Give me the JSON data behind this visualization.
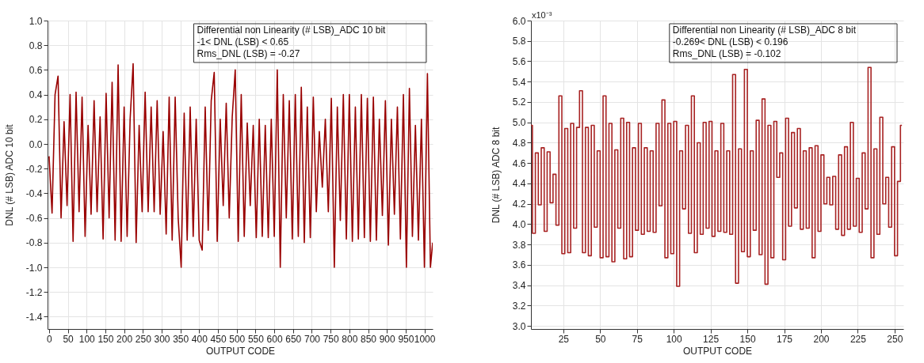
{
  "chart_data": [
    {
      "type": "line",
      "xlabel": "OUTPUT CODE",
      "ylabel": "DNL (# LSB) ADC 10 bit",
      "color": "#990000",
      "grid": true,
      "annotations": [
        "Differential non Linearity (# LSB)_ADC 10 bit",
        "-1< DNL (LSB) < 0.65",
        "Rms_DNL (LSB) = -0.27"
      ],
      "xlim": [
        -4,
        1022
      ],
      "xticks": [
        0,
        50,
        100,
        150,
        200,
        250,
        300,
        350,
        400,
        450,
        500,
        550,
        600,
        650,
        700,
        750,
        800,
        850,
        900,
        950,
        1000
      ],
      "ylim": [
        -1.5,
        1.0
      ],
      "yticks": [
        -1.4,
        -1.2,
        {
          "value": -1,
          "label": "-1.0"
        },
        -0.8,
        -0.6,
        -0.4,
        -0.2,
        {
          "value": 0,
          "label": "0.0"
        },
        0.2,
        0.4,
        0.6,
        0.8,
        {
          "value": 1,
          "label": "1.0"
        }
      ],
      "x": [
        0,
        8,
        16,
        24,
        32,
        40,
        48,
        56,
        64,
        72,
        80,
        88,
        96,
        104,
        112,
        120,
        128,
        136,
        144,
        152,
        160,
        168,
        176,
        184,
        192,
        200,
        208,
        216,
        224,
        232,
        240,
        248,
        256,
        264,
        272,
        280,
        288,
        296,
        304,
        312,
        320,
        328,
        336,
        344,
        352,
        360,
        368,
        376,
        384,
        392,
        400,
        408,
        416,
        424,
        432,
        440,
        448,
        456,
        464,
        472,
        480,
        488,
        496,
        504,
        512,
        520,
        528,
        536,
        544,
        552,
        560,
        568,
        576,
        584,
        592,
        600,
        608,
        616,
        624,
        632,
        640,
        648,
        656,
        664,
        672,
        680,
        688,
        696,
        704,
        712,
        720,
        728,
        736,
        744,
        752,
        760,
        768,
        776,
        784,
        792,
        800,
        808,
        816,
        824,
        832,
        840,
        848,
        856,
        864,
        872,
        880,
        888,
        896,
        904,
        912,
        920,
        928,
        936,
        944,
        952,
        960,
        968,
        976,
        984,
        992,
        1000,
        1008,
        1016,
        1022
      ],
      "values": [
        -0.1,
        -0.56,
        0.4,
        0.55,
        -0.6,
        0.18,
        -0.5,
        0.4,
        -0.79,
        0.42,
        -0.55,
        0.38,
        -0.75,
        0.15,
        -0.57,
        0.35,
        -0.55,
        0.22,
        -0.77,
        0.41,
        -0.6,
        0.5,
        -0.78,
        0.64,
        -0.79,
        0.3,
        -0.75,
        0.2,
        0.65,
        -0.8,
        0.15,
        -0.55,
        0.42,
        -0.55,
        0.3,
        -0.55,
        0.35,
        -0.57,
        0.1,
        -0.73,
        0.38,
        -0.78,
        0.38,
        -0.6,
        -1.0,
        0.25,
        -0.78,
        0.3,
        -0.75,
        0.2,
        -0.78,
        -0.86,
        0.3,
        -0.7,
        0.35,
        0.58,
        -0.79,
        0.2,
        -0.5,
        0.33,
        -0.6,
        0.22,
        0.6,
        -0.79,
        0.4,
        -0.75,
        0.17,
        -0.5,
        0.15,
        -0.76,
        0.2,
        -0.75,
        0.15,
        -0.76,
        0.2,
        -0.75,
        0.6,
        -1.0,
        0.4,
        -0.6,
        0.35,
        -0.77,
        0.4,
        -0.75,
        0.46,
        -0.8,
        0.3,
        -0.76,
        0.38,
        -0.55,
        0.1,
        -0.35,
        0.2,
        -0.55,
        0.37,
        -1.0,
        0.3,
        -0.62,
        0.4,
        -0.77,
        0.4,
        -0.79,
        0.3,
        -0.77,
        0.4,
        -0.76,
        0.37,
        -0.79,
        0.38,
        -0.78,
        0.2,
        -0.58,
        0.35,
        -0.82,
        0.2,
        -0.57,
        0.3,
        -0.77,
        0.4,
        -1.0,
        0.45,
        -0.75,
        0.15,
        -0.78,
        0.2,
        -1.0,
        0.57,
        -1.0,
        -0.8
      ]
    },
    {
      "type": "step",
      "xlabel": "OUTPUT CODE",
      "ylabel": "DNL (# LSB)  ADC 8 bit",
      "color": "#a82323",
      "grid": true,
      "annotations": [
        "Differential non Linearity (# LSB)_ADC 8 bit",
        "-0.269< DNL (LSB) < 0.196",
        "Rms_DNL (LSB) = -0.102",
        "x10⁻³"
      ],
      "xlim": [
        3,
        256
      ],
      "xticks": [
        25,
        50,
        75,
        100,
        125,
        150,
        175,
        200,
        225,
        250
      ],
      "ylim": [
        2.97,
        6.0
      ],
      "yticks": [
        {
          "value": 3,
          "label": "3.0"
        },
        3.2,
        3.4,
        3.6,
        3.8,
        {
          "value": 4,
          "label": "4.0"
        },
        4.2,
        4.4,
        4.6,
        4.8,
        {
          "value": 5,
          "label": "5.0"
        },
        5.2,
        5.4,
        5.6,
        5.8,
        {
          "value": 6,
          "label": "6.0"
        }
      ],
      "x": [
        3,
        5,
        7,
        9,
        11,
        13,
        15,
        17,
        19,
        21,
        23,
        25,
        27,
        29,
        31,
        33,
        35,
        37,
        39,
        41,
        43,
        45,
        47,
        49,
        51,
        53,
        55,
        57,
        59,
        61,
        63,
        65,
        67,
        69,
        71,
        73,
        75,
        77,
        79,
        81,
        83,
        85,
        87,
        89,
        91,
        93,
        95,
        97,
        99,
        101,
        103,
        105,
        107,
        109,
        111,
        113,
        115,
        117,
        119,
        121,
        123,
        125,
        127,
        129,
        131,
        133,
        135,
        137,
        139,
        141,
        143,
        145,
        147,
        149,
        151,
        153,
        155,
        157,
        159,
        161,
        163,
        165,
        167,
        169,
        171,
        173,
        175,
        177,
        179,
        181,
        183,
        185,
        187,
        189,
        191,
        193,
        195,
        197,
        199,
        201,
        203,
        205,
        207,
        209,
        211,
        213,
        215,
        217,
        219,
        221,
        223,
        225,
        227,
        229,
        231,
        233,
        235,
        237,
        239,
        241,
        243,
        245,
        247,
        249,
        251,
        253,
        255
      ],
      "values": [
        4.97,
        3.91,
        4.7,
        4.19,
        4.75,
        3.93,
        4.71,
        4.21,
        4.49,
        3.99,
        5.26,
        3.71,
        4.94,
        3.72,
        4.99,
        3.96,
        4.95,
        5.31,
        3.72,
        4.95,
        3.69,
        4.97,
        3.97,
        4.72,
        3.67,
        5.26,
        3.68,
        4.99,
        3.63,
        4.73,
        3.96,
        5.04,
        3.66,
        5.0,
        3.68,
        4.75,
        3.94,
        4.99,
        3.9,
        4.75,
        3.93,
        4.72,
        3.92,
        4.99,
        4.18,
        5.22,
        3.67,
        4.99,
        3.71,
        5.01,
        3.39,
        4.72,
        4.15,
        4.97,
        3.91,
        5.26,
        3.72,
        4.8,
        3.9,
        5.0,
        3.96,
        5.01,
        3.88,
        4.72,
        3.93,
        4.99,
        3.92,
        4.72,
        3.9,
        5.47,
        3.42,
        4.74,
        3.73,
        5.52,
        3.68,
        4.72,
        3.94,
        5.02,
        3.7,
        5.23,
        3.41,
        4.97,
        3.67,
        5.01,
        4.46,
        4.7,
        3.65,
        5.04,
        3.98,
        4.9,
        4.16,
        4.94,
        3.95,
        4.72,
        3.96,
        4.75,
        3.67,
        4.77,
        3.93,
        4.68,
        4.2,
        4.46,
        4.19,
        4.47,
        3.95,
        4.68,
        3.89,
        4.76,
        3.95,
        5.0,
        3.98,
        4.45,
        3.92,
        4.7,
        4.15,
        5.54,
        3.67,
        4.74,
        3.9,
        5.05,
        4.2,
        4.46,
        3.97,
        4.76,
        3.69,
        4.42,
        4.97
      ]
    }
  ]
}
